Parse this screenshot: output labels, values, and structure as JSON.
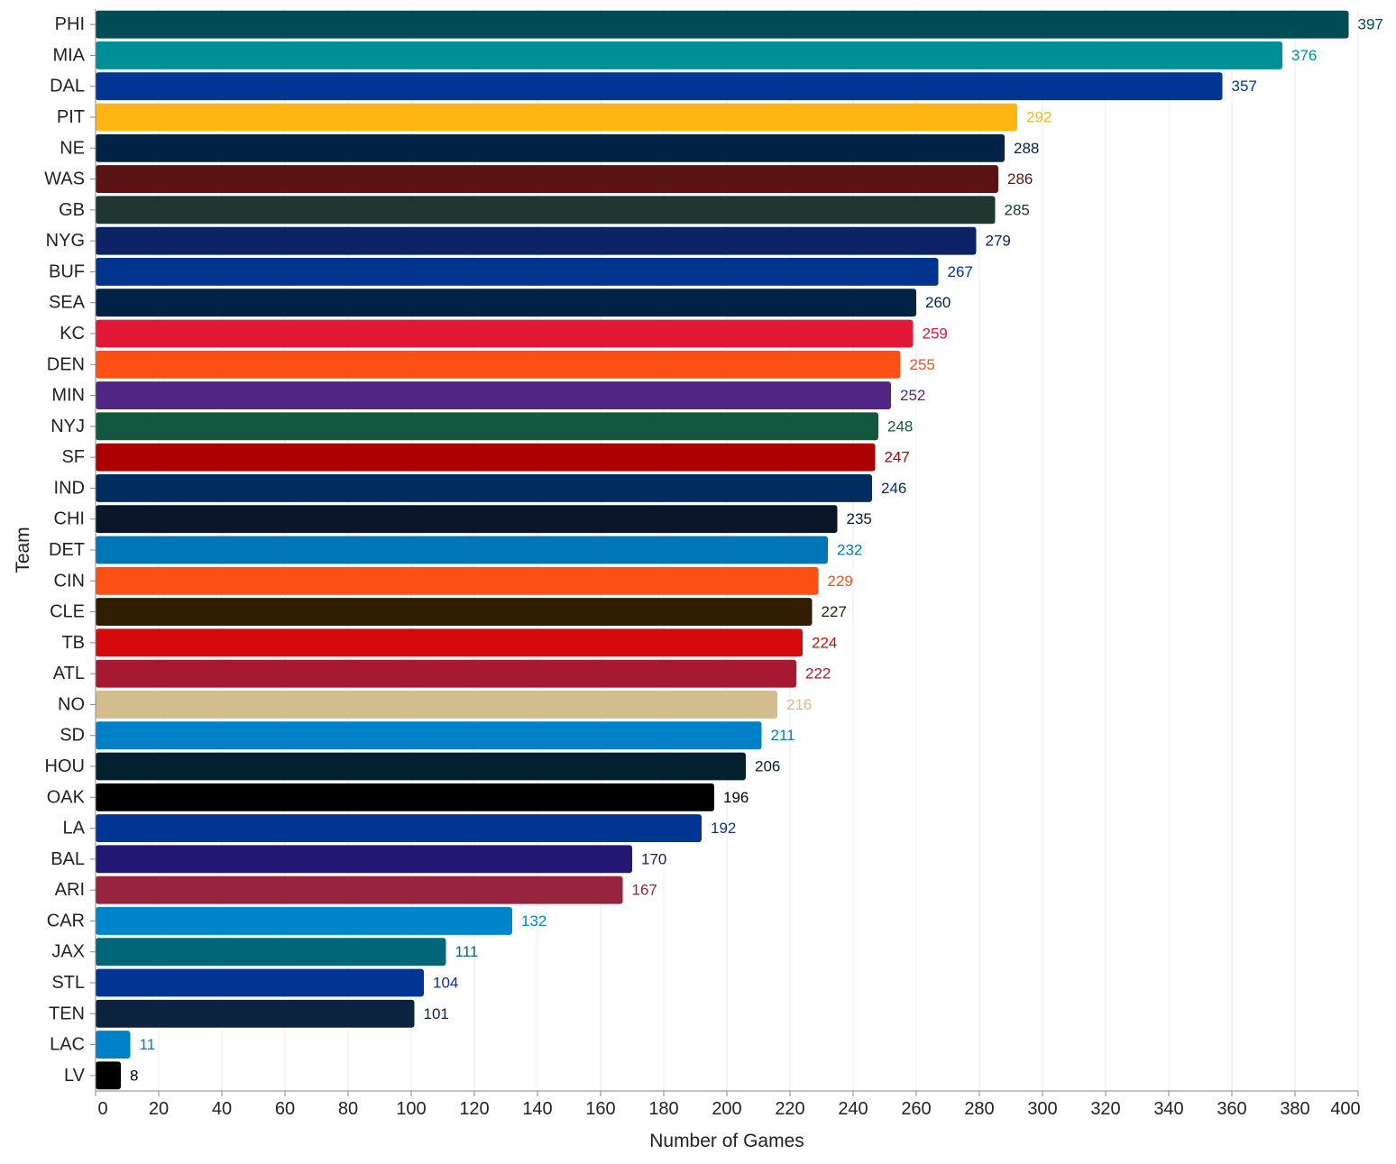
{
  "chart_data": {
    "type": "bar",
    "orientation": "horizontal",
    "xlabel": "Number of Games",
    "ylabel": "Team",
    "xlim": [
      0,
      400
    ],
    "xticks": [
      0,
      20,
      40,
      60,
      80,
      100,
      120,
      140,
      160,
      180,
      200,
      220,
      240,
      260,
      280,
      300,
      320,
      340,
      360,
      380,
      400
    ],
    "grid": true,
    "legend": "none",
    "categories": [
      "PHI",
      "MIA",
      "DAL",
      "PIT",
      "NE",
      "WAS",
      "GB",
      "NYG",
      "BUF",
      "SEA",
      "KC",
      "DEN",
      "MIN",
      "NYJ",
      "SF",
      "IND",
      "CHI",
      "DET",
      "CIN",
      "CLE",
      "TB",
      "ATL",
      "NO",
      "SD",
      "HOU",
      "OAK",
      "LA",
      "BAL",
      "ARI",
      "CAR",
      "JAX",
      "STL",
      "TEN",
      "LAC",
      "LV"
    ],
    "values": [
      397,
      376,
      357,
      292,
      288,
      286,
      285,
      279,
      267,
      260,
      259,
      255,
      252,
      248,
      247,
      246,
      235,
      232,
      229,
      227,
      224,
      222,
      216,
      211,
      206,
      196,
      192,
      170,
      167,
      132,
      111,
      104,
      101,
      11,
      8
    ],
    "colors": [
      "#004C54",
      "#008E97",
      "#003594",
      "#FFB612",
      "#002244",
      "#5A1414",
      "#203731",
      "#0B2265",
      "#00338D",
      "#002244",
      "#E31837",
      "#FB4F14",
      "#4F2683",
      "#125740",
      "#AA0000",
      "#002C5F",
      "#0B162A",
      "#0076B6",
      "#FB4F14",
      "#311D00",
      "#D50A0A",
      "#A71930",
      "#D3BC8D",
      "#0080C6",
      "#03202F",
      "#000000",
      "#003594",
      "#241773",
      "#97233F",
      "#0085CA",
      "#006778",
      "#003594",
      "#0C2340",
      "#0080C6",
      "#000000"
    ]
  }
}
